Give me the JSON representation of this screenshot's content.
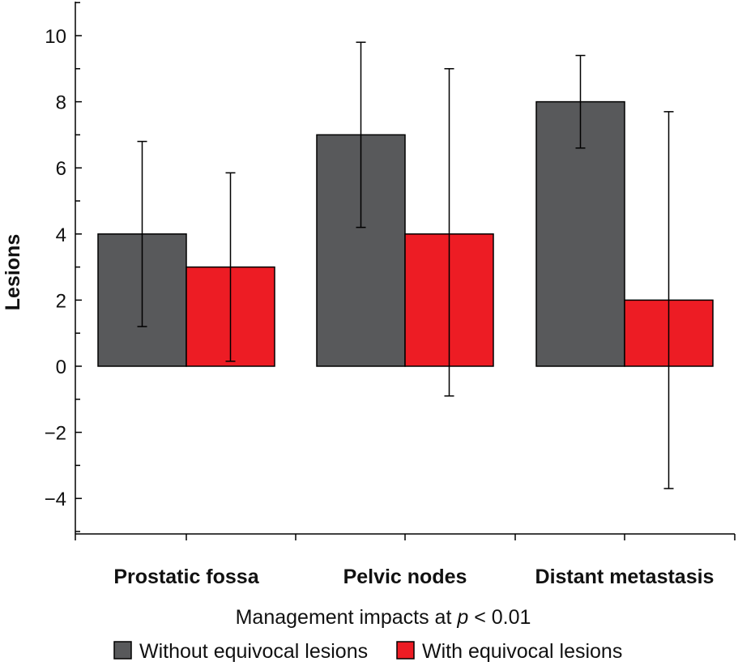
{
  "chart_data": {
    "type": "bar",
    "categories": [
      "Prostatic fossa",
      "Pelvic nodes",
      "Distant metastasis"
    ],
    "series": [
      {
        "name": "Without equivocal lesions",
        "color": "#58595b",
        "values": [
          4,
          7,
          8
        ],
        "error_low": [
          1.2,
          4.2,
          6.6
        ],
        "error_high": [
          6.8,
          9.8,
          9.4
        ]
      },
      {
        "name": "With equivocal lesions",
        "color": "#ed1c24",
        "values": [
          3,
          4,
          2
        ],
        "error_low": [
          0.15,
          -0.9,
          -3.7
        ],
        "error_high": [
          5.85,
          9.0,
          7.7
        ]
      }
    ],
    "ylabel": "Lesions",
    "xlabel_prefix": "Management impacts at ",
    "xlabel_var": "p",
    "xlabel_suffix": " < 0.01",
    "ylim": [
      -5,
      11
    ],
    "yticks": [
      10,
      8,
      6,
      4,
      2,
      0,
      -2,
      -4
    ],
    "ytick_labels": [
      "10",
      "8",
      "6",
      "4",
      "2",
      "0",
      "−2",
      "−4"
    ],
    "grid": false,
    "legend_position": "bottom"
  }
}
